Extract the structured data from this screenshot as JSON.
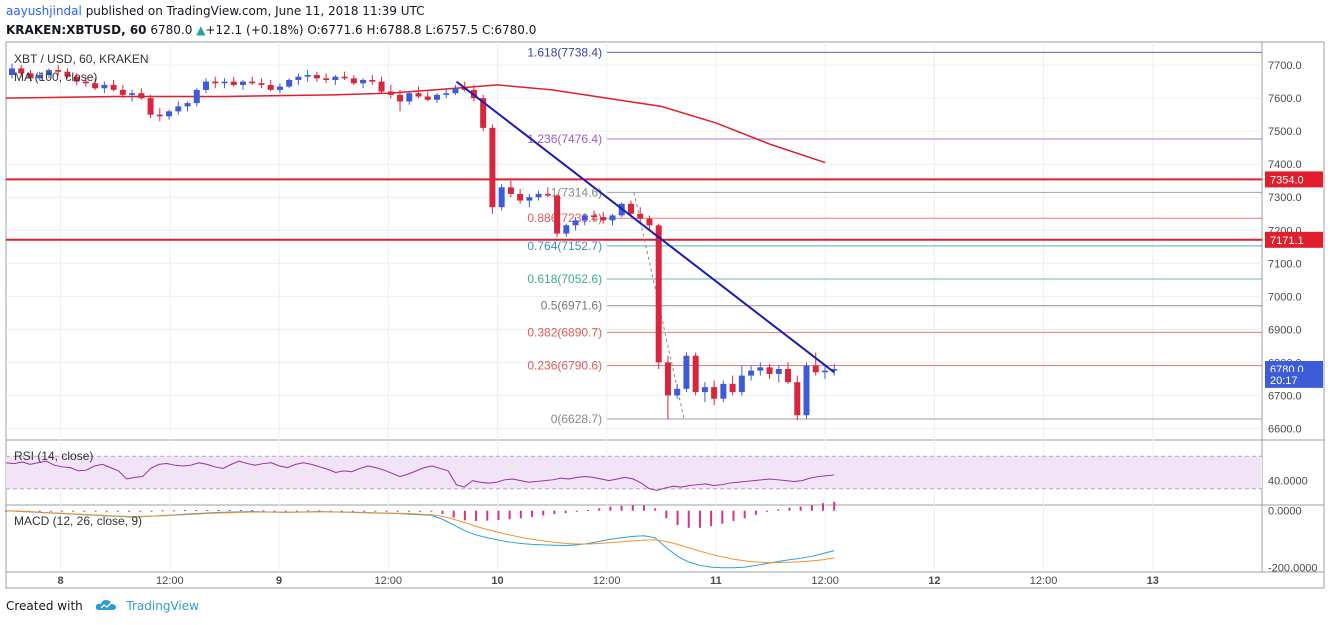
{
  "header": {
    "author": "aayushjindal",
    "published_text": "published on TradingView.com, June 11, 2018 11:39 UTC",
    "symbol": "KRAKEN:XBTUSD, 60",
    "last": "6780.0",
    "change": "+12.1 (+0.18%)",
    "o_label": "O:",
    "o_value": "6771.6",
    "h_label": "H:",
    "h_value": "6788.8",
    "l_label": "L:",
    "l_value": "6757.5",
    "c_label": "C:",
    "c_value": "6780.0"
  },
  "footer": {
    "created_with": "Created with",
    "brand": "TradingView"
  },
  "colors": {
    "up": "#3d5dd8",
    "down": "#d7263d",
    "ma": "#e01e2d",
    "trend": "#1a1ab4",
    "rsi": "#9a2fa3",
    "rsi_band": "#f1e4f6",
    "macd": "#2a9fd8",
    "signal": "#f2932e",
    "hist": "#d6318a"
  },
  "chart_data": {
    "type": "candlestick",
    "title": "XBT / USD, 60, KRAKEN",
    "ma_label": "MA (100, close)",
    "y_ticks": [
      "7700.0",
      "7600.0",
      "7500.0",
      "7400.0",
      "7300.0",
      "7200.0",
      "7100.0",
      "7000.0",
      "6900.0",
      "6800.0",
      "6700.0",
      "6600.0"
    ],
    "ylim": [
      6565,
      7770
    ],
    "x_ticks": [
      "8",
      "12:00",
      "9",
      "12:00",
      "10",
      "12:00",
      "11",
      "12:00",
      "12",
      "12:00",
      "13"
    ],
    "x_range": [
      "June 7 18:00",
      "June 13 12:00"
    ],
    "price_badges": [
      {
        "label": "7354.0",
        "value": 7354.0,
        "color": "#e01e2d"
      },
      {
        "label": "7171.1",
        "value": 7171.1,
        "color": "#e01e2d"
      },
      {
        "label": "6780.0",
        "value": 6780.0,
        "color": "#3d5dd8"
      },
      {
        "label": "20:17",
        "value": 6747,
        "color": "#3d5dd8"
      }
    ],
    "horizontal_lines": [
      {
        "value": 7354.0,
        "color": "#e01e2d"
      },
      {
        "value": 7171.1,
        "color": "#e01e2d"
      }
    ],
    "fib_levels": [
      {
        "label": "1.618(7738.4)",
        "value": 7738.4,
        "color": "#3c3fa8"
      },
      {
        "label": "1.236(7476.4)",
        "value": 7476.4,
        "color": "#9c5bc7"
      },
      {
        "label": "1(7314.6)",
        "value": 7314.6,
        "color": "#888888"
      },
      {
        "label": "0.886(7236.4)",
        "value": 7236.4,
        "color": "#e05a5a"
      },
      {
        "label": "0.764(7152.7)",
        "value": 7152.7,
        "color": "#3d8fc4"
      },
      {
        "label": "0.618(7052.6)",
        "value": 7052.6,
        "color": "#3ab08a"
      },
      {
        "label": "0.5(6971.6)",
        "value": 6971.6,
        "color": "#777777"
      },
      {
        "label": "0.382(6890.7)",
        "value": 6890.7,
        "color": "#e05a5a"
      },
      {
        "label": "0.236(6790.6)",
        "value": 6790.6,
        "color": "#e05a5a"
      },
      {
        "label": "0(6628.7)",
        "value": 6628.7,
        "color": "#888888"
      }
    ],
    "trend_line": {
      "from": [
        "June 9 19:30",
        7650
      ],
      "to": [
        "June 11 13:00",
        6770
      ]
    },
    "ma_series": {
      "name": "MA (100, close)",
      "points": [
        [
          "June 7 18:00",
          7600
        ],
        [
          "June 8 06:00",
          7605
        ],
        [
          "June 8 18:00",
          7605
        ],
        [
          "June 9 06:00",
          7610
        ],
        [
          "June 9 12:00",
          7615
        ],
        [
          "June 9 18:00",
          7627
        ],
        [
          "June 10 00:00",
          7640
        ],
        [
          "June 10 06:00",
          7625
        ],
        [
          "June 10 12:00",
          7600
        ],
        [
          "June 10 18:00",
          7575
        ],
        [
          "June 11 00:00",
          7525
        ],
        [
          "June 11 06:00",
          7460
        ],
        [
          "June 11 12:00",
          7405
        ]
      ]
    },
    "rsi": {
      "label": "RSI (14, close)",
      "tick": "40.0000",
      "band": [
        30,
        70
      ],
      "ylim": [
        10,
        90
      ],
      "values": [
        62,
        61,
        63,
        60,
        62,
        64,
        59,
        57,
        56,
        52,
        53,
        58,
        60,
        56,
        52,
        42,
        44,
        45,
        55,
        60,
        61,
        59,
        58,
        59,
        62,
        60,
        57,
        55,
        60,
        64,
        61,
        59,
        61,
        62,
        58,
        56,
        60,
        62,
        60,
        57,
        54,
        50,
        52,
        51,
        55,
        58,
        56,
        53,
        49,
        45,
        48,
        52,
        56,
        58,
        55,
        52,
        35,
        32,
        40,
        38,
        37,
        38,
        41,
        42,
        40,
        38,
        39,
        40,
        41,
        43,
        42,
        44,
        45,
        44,
        42,
        40,
        42,
        44,
        42,
        37,
        30,
        28,
        31,
        33,
        32,
        34,
        35,
        36,
        34,
        35,
        37,
        38,
        39,
        40,
        41,
        42,
        41,
        40,
        39,
        40,
        43,
        45,
        46,
        47
      ]
    },
    "macd": {
      "label": "MACD (12, 26, close, 9)",
      "ticks": [
        "0.0000",
        "-200.0000"
      ],
      "ylim": [
        -215,
        20
      ],
      "macd": [
        0,
        -2,
        -4,
        -6,
        -8,
        -10,
        -12,
        -14,
        -16,
        -18,
        -20,
        -22,
        -21,
        -19,
        -17,
        -15,
        -12,
        -10,
        -8,
        -6,
        -5,
        -4,
        -3,
        -4,
        -5,
        -6,
        -5,
        -4,
        -3,
        -4,
        -5,
        -6,
        -7,
        -8,
        -9,
        -10,
        -12,
        -14,
        -16,
        -30,
        -50,
        -70,
        -85,
        -95,
        -103,
        -110,
        -115,
        -118,
        -120,
        -121,
        -122,
        -120,
        -115,
        -108,
        -100,
        -95,
        -90,
        -88,
        -95,
        -130,
        -160,
        -180,
        -192,
        -198,
        -200,
        -200,
        -198,
        -192,
        -185,
        -178,
        -172,
        -167,
        -160,
        -150,
        -140
      ],
      "signal": [
        0,
        -1,
        -3,
        -5,
        -7,
        -9,
        -11,
        -13,
        -15,
        -17,
        -19,
        -20,
        -20,
        -19,
        -18,
        -16,
        -14,
        -12,
        -10,
        -8,
        -7,
        -6,
        -5,
        -5,
        -5,
        -5,
        -5,
        -5,
        -4,
        -4,
        -5,
        -5,
        -6,
        -7,
        -8,
        -9,
        -10,
        -12,
        -14,
        -20,
        -30,
        -42,
        -55,
        -66,
        -76,
        -85,
        -93,
        -100,
        -106,
        -111,
        -115,
        -117,
        -117,
        -115,
        -112,
        -109,
        -106,
        -103,
        -102,
        -108,
        -118,
        -130,
        -142,
        -153,
        -162,
        -170,
        -176,
        -180,
        -182,
        -182,
        -181,
        -179,
        -176,
        -172,
        -166
      ],
      "histogram": [
        0,
        -1,
        -1,
        -1,
        -1,
        -1,
        -1,
        -1,
        -1,
        -1,
        -1,
        -2,
        -1,
        0,
        1,
        1,
        2,
        2,
        2,
        2,
        2,
        2,
        2,
        1,
        0,
        -1,
        0,
        1,
        1,
        0,
        0,
        -1,
        -1,
        -1,
        -1,
        -1,
        -2,
        -2,
        -2,
        -10,
        -20,
        -28,
        -30,
        -29,
        -27,
        -25,
        -22,
        -18,
        -14,
        -10,
        -7,
        -3,
        2,
        7,
        12,
        14,
        16,
        15,
        7,
        -22,
        -42,
        -50,
        -50,
        -45,
        -38,
        -30,
        -22,
        -12,
        -3,
        4,
        9,
        12,
        16,
        22,
        26
      ]
    },
    "candles": [
      [
        7670,
        7705,
        7660,
        7690
      ],
      [
        7690,
        7700,
        7665,
        7675
      ],
      [
        7675,
        7685,
        7650,
        7660
      ],
      [
        7660,
        7680,
        7655,
        7670
      ],
      [
        7670,
        7690,
        7660,
        7685
      ],
      [
        7685,
        7700,
        7670,
        7680
      ],
      [
        7680,
        7690,
        7660,
        7665
      ],
      [
        7665,
        7675,
        7640,
        7650
      ],
      [
        7650,
        7665,
        7635,
        7645
      ],
      [
        7645,
        7660,
        7625,
        7630
      ],
      [
        7630,
        7650,
        7615,
        7640
      ],
      [
        7640,
        7655,
        7620,
        7625
      ],
      [
        7625,
        7640,
        7600,
        7610
      ],
      [
        7610,
        7625,
        7590,
        7615
      ],
      [
        7615,
        7630,
        7595,
        7600
      ],
      [
        7600,
        7610,
        7540,
        7550
      ],
      [
        7550,
        7570,
        7530,
        7545
      ],
      [
        7545,
        7565,
        7535,
        7560
      ],
      [
        7560,
        7590,
        7550,
        7575
      ],
      [
        7575,
        7590,
        7560,
        7585
      ],
      [
        7585,
        7630,
        7575,
        7625
      ],
      [
        7625,
        7660,
        7615,
        7650
      ],
      [
        7650,
        7665,
        7630,
        7645
      ],
      [
        7645,
        7660,
        7630,
        7650
      ],
      [
        7650,
        7665,
        7635,
        7640
      ],
      [
        7640,
        7655,
        7625,
        7650
      ],
      [
        7650,
        7665,
        7640,
        7645
      ],
      [
        7645,
        7660,
        7630,
        7640
      ],
      [
        7640,
        7655,
        7620,
        7625
      ],
      [
        7625,
        7645,
        7615,
        7635
      ],
      [
        7635,
        7660,
        7630,
        7655
      ],
      [
        7655,
        7675,
        7640,
        7665
      ],
      [
        7665,
        7685,
        7650,
        7670
      ],
      [
        7670,
        7680,
        7650,
        7660
      ],
      [
        7660,
        7675,
        7645,
        7655
      ],
      [
        7655,
        7670,
        7640,
        7665
      ],
      [
        7665,
        7680,
        7655,
        7660
      ],
      [
        7660,
        7670,
        7640,
        7645
      ],
      [
        7645,
        7660,
        7630,
        7655
      ],
      [
        7655,
        7670,
        7640,
        7650
      ],
      [
        7650,
        7665,
        7615,
        7620
      ],
      [
        7620,
        7640,
        7600,
        7610
      ],
      [
        7610,
        7625,
        7560,
        7590
      ],
      [
        7590,
        7620,
        7580,
        7615
      ],
      [
        7615,
        7635,
        7600,
        7605
      ],
      [
        7605,
        7620,
        7590,
        7595
      ],
      [
        7595,
        7615,
        7585,
        7610
      ],
      [
        7610,
        7630,
        7600,
        7615
      ],
      [
        7615,
        7640,
        7610,
        7630
      ],
      [
        7630,
        7650,
        7620,
        7625
      ],
      [
        7625,
        7640,
        7590,
        7600
      ],
      [
        7600,
        7610,
        7500,
        7510
      ],
      [
        7510,
        7520,
        7250,
        7270
      ],
      [
        7270,
        7340,
        7260,
        7330
      ],
      [
        7330,
        7350,
        7300,
        7310
      ],
      [
        7310,
        7325,
        7280,
        7290
      ],
      [
        7290,
        7310,
        7270,
        7300
      ],
      [
        7300,
        7320,
        7290,
        7310
      ],
      [
        7310,
        7330,
        7300,
        7305
      ],
      [
        7305,
        7310,
        7180,
        7190
      ],
      [
        7190,
        7220,
        7180,
        7215
      ],
      [
        7215,
        7240,
        7200,
        7230
      ],
      [
        7230,
        7250,
        7215,
        7245
      ],
      [
        7245,
        7260,
        7225,
        7240
      ],
      [
        7240,
        7255,
        7220,
        7230
      ],
      [
        7230,
        7250,
        7215,
        7245
      ],
      [
        7245,
        7285,
        7240,
        7280
      ],
      [
        7280,
        7290,
        7240,
        7250
      ],
      [
        7250,
        7270,
        7225,
        7235
      ],
      [
        7235,
        7245,
        7200,
        7215
      ],
      [
        7215,
        7220,
        6780,
        6800
      ],
      [
        6800,
        6820,
        6628,
        6700
      ],
      [
        6700,
        6735,
        6690,
        6720
      ],
      [
        6720,
        6830,
        6710,
        6820
      ],
      [
        6820,
        6830,
        6700,
        6710
      ],
      [
        6710,
        6740,
        6680,
        6725
      ],
      [
        6725,
        6745,
        6670,
        6690
      ],
      [
        6690,
        6745,
        6680,
        6735
      ],
      [
        6735,
        6760,
        6700,
        6710
      ],
      [
        6710,
        6790,
        6700,
        6760
      ],
      [
        6760,
        6790,
        6745,
        6775
      ],
      [
        6775,
        6800,
        6760,
        6785
      ],
      [
        6785,
        6795,
        6750,
        6765
      ],
      [
        6765,
        6790,
        6740,
        6780
      ],
      [
        6780,
        6800,
        6735,
        6740
      ],
      [
        6740,
        6760,
        6625,
        6640
      ],
      [
        6640,
        6800,
        6630,
        6790
      ],
      [
        6790,
        6830,
        6760,
        6770
      ],
      [
        6770,
        6790,
        6750,
        6775
      ],
      [
        6775,
        6795,
        6760,
        6780
      ]
    ]
  }
}
